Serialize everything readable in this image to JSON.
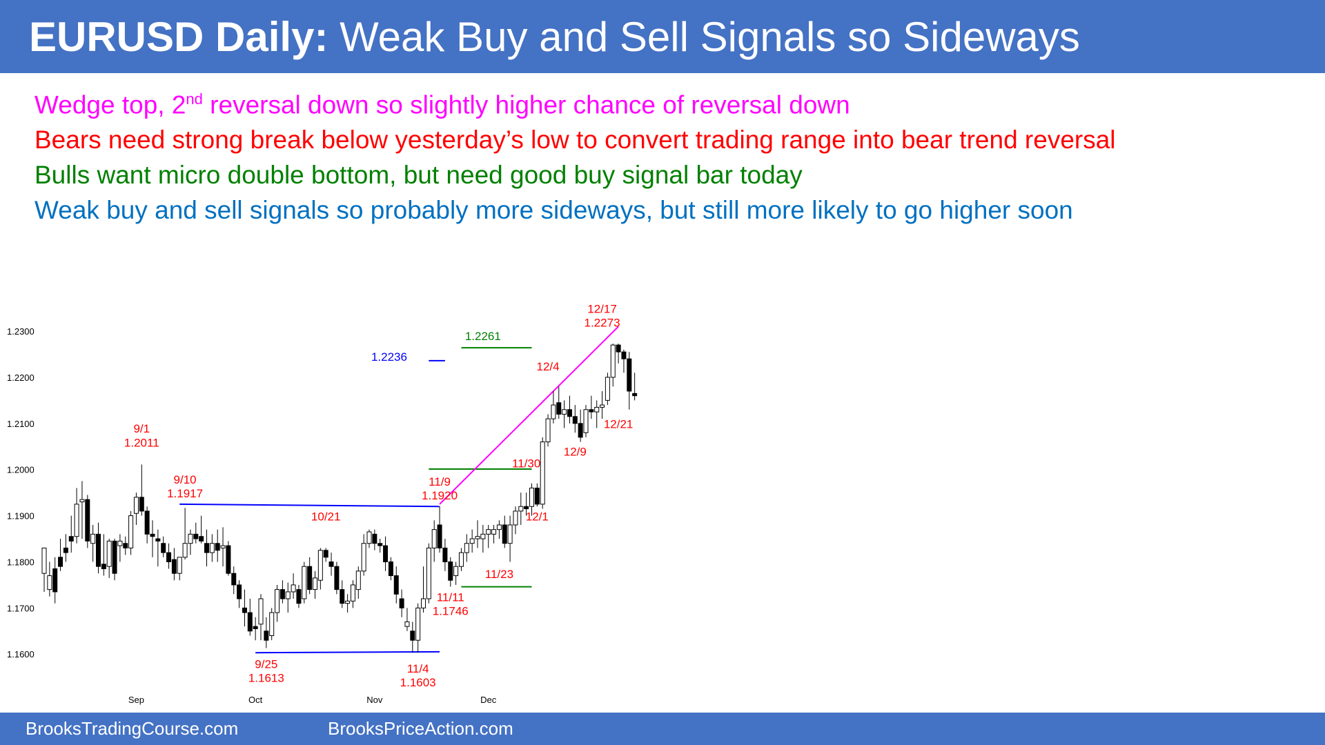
{
  "header": {
    "title_bold": "EURUSD Daily:",
    "title_rest": "Weak Buy and Sell Signals so Sideways"
  },
  "bullets": [
    {
      "text_before": "Wedge top, 2",
      "superscript": "nd",
      "text_after": " reversal down so slightly higher chance of reversal down",
      "color": "#ff00ff"
    },
    {
      "text": "Bears need strong break below yesterday’s low to convert trading range into bear trend reversal",
      "color": "#ff0000"
    },
    {
      "text": "Bulls want micro double bottom, but need good buy signal bar today",
      "color": "#008000"
    },
    {
      "text": "Weak buy and sell signals so probably more sideways, but still more likely to go higher soon",
      "color": "#0070c0"
    }
  ],
  "footer": {
    "left": "BrooksTradingCourse.com",
    "right": "BrooksPriceAction.com"
  },
  "chart_data": {
    "type": "candlestick",
    "title": "EURUSD Daily",
    "ylim": [
      1.156,
      1.233
    ],
    "y_ticks": [
      "1.1600",
      "1.1700",
      "1.1800",
      "1.1900",
      "1.2000",
      "1.2100",
      "1.2200",
      "1.2300"
    ],
    "x_ticks": [
      {
        "label": "Sep",
        "bar": 17
      },
      {
        "label": "Oct",
        "bar": 39
      },
      {
        "label": "Nov",
        "bar": 61
      },
      {
        "label": "Dec",
        "bar": 82
      }
    ],
    "candles": [
      [
        1.1775,
        1.1825,
        1.1735,
        1.183
      ],
      [
        1.174,
        1.18,
        1.1725,
        1.177
      ],
      [
        1.1785,
        1.181,
        1.171,
        1.1735
      ],
      [
        1.181,
        1.185,
        1.178,
        1.179
      ],
      [
        1.183,
        1.186,
        1.18,
        1.182
      ],
      [
        1.1855,
        1.19,
        1.182,
        1.1845
      ],
      [
        1.1855,
        1.196,
        1.184,
        1.1925
      ],
      [
        1.193,
        1.1975,
        1.185,
        1.1935
      ],
      [
        1.1935,
        1.1945,
        1.183,
        1.1845
      ],
      [
        1.184,
        1.188,
        1.18,
        1.186
      ],
      [
        1.186,
        1.1885,
        1.1775,
        1.179
      ],
      [
        1.1795,
        1.186,
        1.177,
        1.1785
      ],
      [
        1.179,
        1.185,
        1.1765,
        1.1845
      ],
      [
        1.1845,
        1.185,
        1.176,
        1.1775
      ],
      [
        1.1835,
        1.186,
        1.18,
        1.1845
      ],
      [
        1.184,
        1.1855,
        1.1815,
        1.183
      ],
      [
        1.183,
        1.191,
        1.1815,
        1.19
      ],
      [
        1.1905,
        1.195,
        1.188,
        1.194
      ],
      [
        1.194,
        1.2011,
        1.19,
        1.191
      ],
      [
        1.191,
        1.192,
        1.184,
        1.186
      ],
      [
        1.186,
        1.189,
        1.181,
        1.1855
      ],
      [
        1.185,
        1.187,
        1.179,
        1.1845
      ],
      [
        1.184,
        1.1855,
        1.181,
        1.182
      ],
      [
        1.182,
        1.184,
        1.1785,
        1.18
      ],
      [
        1.1805,
        1.183,
        1.176,
        1.1775
      ],
      [
        1.1775,
        1.181,
        1.176,
        1.181
      ],
      [
        1.181,
        1.1917,
        1.1805,
        1.184
      ],
      [
        1.184,
        1.187,
        1.1815,
        1.186
      ],
      [
        1.186,
        1.1885,
        1.184,
        1.185
      ],
      [
        1.1855,
        1.19,
        1.184,
        1.1845
      ],
      [
        1.184,
        1.187,
        1.179,
        1.182
      ],
      [
        1.182,
        1.186,
        1.18,
        1.184
      ],
      [
        1.184,
        1.187,
        1.18,
        1.1825
      ],
      [
        1.183,
        1.1875,
        1.179,
        1.1835
      ],
      [
        1.1835,
        1.1845,
        1.177,
        1.1775
      ],
      [
        1.1775,
        1.179,
        1.173,
        1.175
      ],
      [
        1.175,
        1.176,
        1.17,
        1.172
      ],
      [
        1.17,
        1.174,
        1.166,
        1.169
      ],
      [
        1.169,
        1.172,
        1.164,
        1.165
      ],
      [
        1.166,
        1.168,
        1.163,
        1.1655
      ],
      [
        1.1665,
        1.173,
        1.163,
        1.172
      ],
      [
        1.165,
        1.168,
        1.1613,
        1.163
      ],
      [
        1.164,
        1.17,
        1.163,
        1.169
      ],
      [
        1.169,
        1.175,
        1.167,
        1.174
      ],
      [
        1.174,
        1.176,
        1.171,
        1.172
      ],
      [
        1.172,
        1.1755,
        1.169,
        1.1735
      ],
      [
        1.1735,
        1.1775,
        1.172,
        1.175
      ],
      [
        1.174,
        1.175,
        1.17,
        1.171
      ],
      [
        1.172,
        1.18,
        1.171,
        1.179
      ],
      [
        1.179,
        1.181,
        1.173,
        1.174
      ],
      [
        1.174,
        1.178,
        1.172,
        1.1765
      ],
      [
        1.176,
        1.183,
        1.174,
        1.1825
      ],
      [
        1.1825,
        1.183,
        1.18,
        1.181
      ],
      [
        1.18,
        1.182,
        1.177,
        1.179
      ],
      [
        1.179,
        1.18,
        1.173,
        1.174
      ],
      [
        1.174,
        1.176,
        1.17,
        1.171
      ],
      [
        1.171,
        1.173,
        1.169,
        1.1715
      ],
      [
        1.1715,
        1.176,
        1.17,
        1.175
      ],
      [
        1.174,
        1.179,
        1.172,
        1.178
      ],
      [
        1.178,
        1.186,
        1.177,
        1.184
      ],
      [
        1.184,
        1.187,
        1.183,
        1.1865
      ],
      [
        1.186,
        1.187,
        1.1825,
        1.184
      ],
      [
        1.184,
        1.185,
        1.182,
        1.1835
      ],
      [
        1.1835,
        1.1855,
        1.178,
        1.18
      ],
      [
        1.18,
        1.181,
        1.176,
        1.177
      ],
      [
        1.177,
        1.179,
        1.171,
        1.173
      ],
      [
        1.172,
        1.174,
        1.168,
        1.17
      ],
      [
        1.166,
        1.17,
        1.165,
        1.167
      ],
      [
        1.165,
        1.167,
        1.1603,
        1.163
      ],
      [
        1.163,
        1.171,
        1.1603,
        1.17
      ],
      [
        1.17,
        1.179,
        1.169,
        1.172
      ],
      [
        1.172,
        1.184,
        1.171,
        1.183
      ],
      [
        1.183,
        1.189,
        1.18,
        1.187
      ],
      [
        1.188,
        1.192,
        1.182,
        1.183
      ],
      [
        1.183,
        1.185,
        1.178,
        1.18
      ],
      [
        1.18,
        1.181,
        1.1746,
        1.176
      ],
      [
        1.177,
        1.18,
        1.175,
        1.179
      ],
      [
        1.179,
        1.183,
        1.178,
        1.182
      ],
      [
        1.182,
        1.186,
        1.18,
        1.184
      ],
      [
        1.184,
        1.187,
        1.182,
        1.185
      ],
      [
        1.185,
        1.189,
        1.183,
        1.1855
      ],
      [
        1.185,
        1.188,
        1.182,
        1.186
      ],
      [
        1.186,
        1.188,
        1.183,
        1.187
      ],
      [
        1.186,
        1.188,
        1.184,
        1.187
      ],
      [
        1.187,
        1.189,
        1.185,
        1.188
      ],
      [
        1.188,
        1.19,
        1.183,
        1.184
      ],
      [
        1.184,
        1.19,
        1.18,
        1.188
      ],
      [
        1.188,
        1.192,
        1.186,
        1.191
      ],
      [
        1.191,
        1.195,
        1.188,
        1.192
      ],
      [
        1.192,
        1.195,
        1.19,
        1.1915
      ],
      [
        1.192,
        1.197,
        1.19,
        1.196
      ],
      [
        1.196,
        1.197,
        1.192,
        1.1925
      ],
      [
        1.1925,
        1.207,
        1.1915,
        1.206
      ],
      [
        1.206,
        1.212,
        1.205,
        1.211
      ],
      [
        1.211,
        1.217,
        1.21,
        1.214
      ],
      [
        1.2145,
        1.218,
        1.211,
        1.212
      ],
      [
        1.212,
        1.215,
        1.209,
        1.213
      ],
      [
        1.213,
        1.216,
        1.21,
        1.2115
      ],
      [
        1.2115,
        1.214,
        1.208,
        1.21
      ],
      [
        1.21,
        1.213,
        1.206,
        1.207
      ],
      [
        1.208,
        1.214,
        1.207,
        1.213
      ],
      [
        1.213,
        1.216,
        1.211,
        1.2125
      ],
      [
        1.2125,
        1.215,
        1.209,
        1.2135
      ],
      [
        1.2135,
        1.217,
        1.211,
        1.214
      ],
      [
        1.215,
        1.221,
        1.214,
        1.22
      ],
      [
        1.22,
        1.2273,
        1.218,
        1.227
      ],
      [
        1.227,
        1.2273,
        1.223,
        1.2255
      ],
      [
        1.2255,
        1.226,
        1.221,
        1.224
      ],
      [
        1.224,
        1.2255,
        1.213,
        1.217
      ],
      [
        1.2165,
        1.221,
        1.215,
        1.216
      ]
    ],
    "annotations": {
      "labels": [
        {
          "text": "9/1",
          "bar": 18,
          "price": 1.208,
          "color": "#ff0000"
        },
        {
          "text": "1.2011",
          "bar": 18,
          "price": 1.205,
          "color": "#ff0000"
        },
        {
          "text": "9/10",
          "bar": 26,
          "price": 1.197,
          "color": "#ff0000"
        },
        {
          "text": "1.1917",
          "bar": 26,
          "price": 1.194,
          "color": "#ff0000"
        },
        {
          "text": "9/25",
          "bar": 41,
          "price": 1.157,
          "color": "#ff0000"
        },
        {
          "text": "1.1613",
          "bar": 41,
          "price": 1.154,
          "color": "#ff0000"
        },
        {
          "text": "10/21",
          "bar": 52,
          "price": 1.189,
          "color": "#ff0000"
        },
        {
          "text": "11/4",
          "bar": 69,
          "price": 1.156,
          "color": "#ff0000"
        },
        {
          "text": "1.1603",
          "bar": 69,
          "price": 1.153,
          "color": "#ff0000"
        },
        {
          "text": "11/9",
          "bar": 73,
          "price": 1.1965,
          "color": "#ff0000"
        },
        {
          "text": "1.1920",
          "bar": 73,
          "price": 1.1935,
          "color": "#ff0000"
        },
        {
          "text": "11/11",
          "bar": 75,
          "price": 1.1715,
          "color": "#ff0000"
        },
        {
          "text": "1.1746",
          "bar": 75,
          "price": 1.1685,
          "color": "#ff0000"
        },
        {
          "text": "11/23",
          "bar": 84,
          "price": 1.1765,
          "color": "#ff0000"
        },
        {
          "text": "11/30",
          "bar": 89,
          "price": 1.2005,
          "color": "#ff0000"
        },
        {
          "text": "12/1",
          "bar": 91,
          "price": 1.189,
          "color": "#ff0000"
        },
        {
          "text": "12/4",
          "bar": 93,
          "price": 1.2215,
          "color": "#ff0000"
        },
        {
          "text": "12/9",
          "bar": 98,
          "price": 1.203,
          "color": "#ff0000"
        },
        {
          "text": "12/17",
          "bar": 103,
          "price": 1.234,
          "color": "#ff0000"
        },
        {
          "text": "1.2273",
          "bar": 103,
          "price": 1.231,
          "color": "#ff0000"
        },
        {
          "text": "12/21",
          "bar": 106,
          "price": 1.209,
          "color": "#ff0000"
        },
        {
          "text": "1.2236",
          "bar": 67,
          "price": 1.2236,
          "color": "#0000ff",
          "anchor": "end"
        },
        {
          "text": "1.2261",
          "bar": 81,
          "price": 1.2281,
          "color": "#008000"
        }
      ],
      "lines": [
        {
          "from": [
            25,
            1.1925
          ],
          "to": [
            73,
            1.192
          ],
          "color": "#0000ff"
        },
        {
          "from": [
            39,
            1.1603
          ],
          "to": [
            73,
            1.1605
          ],
          "color": "#0000ff"
        },
        {
          "from": [
            71,
            1.2001
          ],
          "to": [
            90,
            1.2001
          ],
          "color": "#008000"
        },
        {
          "from": [
            77,
            1.1746
          ],
          "to": [
            90,
            1.1746
          ],
          "color": "#008000"
        },
        {
          "from": [
            77,
            1.2264
          ],
          "to": [
            90,
            1.2264
          ],
          "color": "#008000"
        },
        {
          "from": [
            71,
            1.2236
          ],
          "to": [
            74,
            1.2236
          ],
          "color": "#0000ff"
        },
        {
          "from": [
            73,
            1.1925
          ],
          "to": [
            106,
            1.231
          ],
          "color": "#ff00ff"
        }
      ]
    }
  }
}
